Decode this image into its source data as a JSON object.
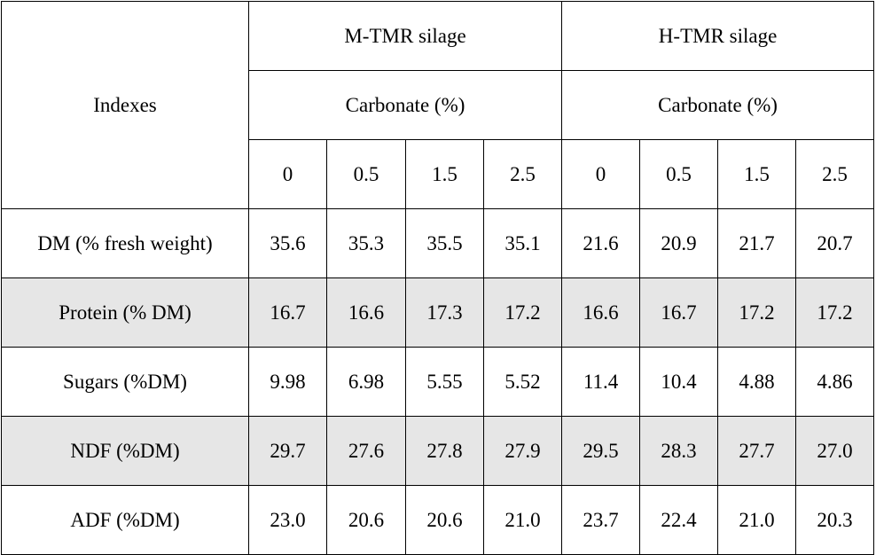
{
  "chart_data": {
    "type": "table",
    "corner_header": "Indexes",
    "groups": [
      {
        "name": "M-TMR silage",
        "subheader": "Carbonate (%)",
        "levels": [
          "0",
          "0.5",
          "1.5",
          "2.5"
        ]
      },
      {
        "name": "H-TMR silage",
        "subheader": "Carbonate (%)",
        "levels": [
          "0",
          "0.5",
          "1.5",
          "2.5"
        ]
      }
    ],
    "rows": [
      {
        "label": "DM (% fresh weight)",
        "values": [
          "35.6",
          "35.3",
          "35.5",
          "35.1",
          "21.6",
          "20.9",
          "21.7",
          "20.7"
        ]
      },
      {
        "label": "Protein (% DM)",
        "values": [
          "16.7",
          "16.6",
          "17.3",
          "17.2",
          "16.6",
          "16.7",
          "17.2",
          "17.2"
        ]
      },
      {
        "label": "Sugars (%DM)",
        "values": [
          "9.98",
          "6.98",
          "5.55",
          "5.52",
          "11.4",
          "10.4",
          "4.88",
          "4.86"
        ]
      },
      {
        "label": "NDF (%DM)",
        "values": [
          "29.7",
          "27.6",
          "27.8",
          "27.9",
          "29.5",
          "28.3",
          "27.7",
          "27.0"
        ]
      },
      {
        "label": "ADF (%DM)",
        "values": [
          "23.0",
          "20.6",
          "20.6",
          "21.0",
          "23.7",
          "22.4",
          "21.0",
          "20.3"
        ]
      }
    ],
    "shaded_row_color": "#e6e6e6"
  }
}
